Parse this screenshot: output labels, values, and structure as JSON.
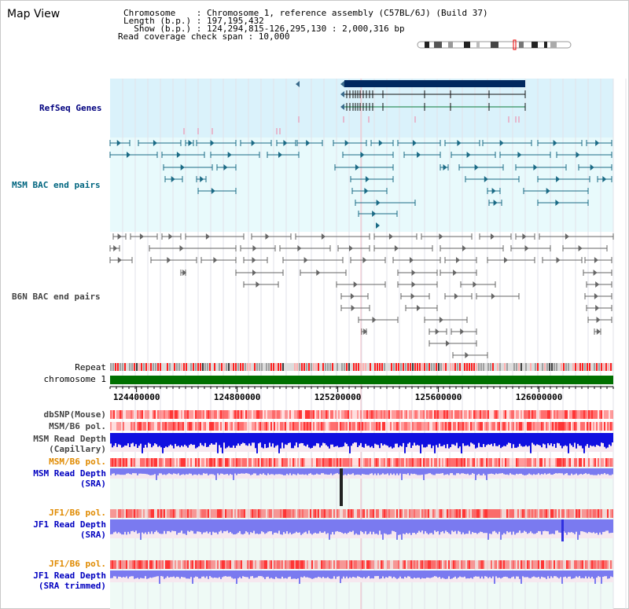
{
  "title": "Map View",
  "info": {
    "line1": "Chromosome    : Chromosome 1, reference assembly (C57BL/6J) (Build 37)",
    "line2": "Length (b.p.) : 197,195,432",
    "line3": "  Show (b.p.) : 124,294,815-126,295,130 : 2,000,316 bp",
    "line4": "Read coverage check span : 10,000"
  },
  "labels": {
    "refseq": "RefSeq Genes",
    "msm_bac": "MSM BAC end pairs",
    "b6n_bac": "B6N BAC end pairs",
    "repeat": "Repeat",
    "chromosome": "chromosome 1",
    "dbsnp": "dbSNP(Mouse)",
    "msm_b6_pol1": "MSM/B6 pol.",
    "msm_rd_cap_1": "MSM Read Depth",
    "msm_rd_cap_2": "(Capillary)",
    "msm_b6_pol2": "MSM/B6 pol.",
    "msm_rd_sra_1": "MSM Read Depth",
    "msm_rd_sra_2": "(SRA)",
    "jf1_b6_pol1": "JF1/B6 pol.",
    "jf1_rd_sra_1": "JF1 Read Depth",
    "jf1_rd_sra_2": "(SRA)",
    "jf1_b6_pol2": "JF1/B6 pol.",
    "jf1_rd_trim_1": "JF1 Read Depth",
    "jf1_rd_trim_2": "(SRA trimmed)"
  },
  "axis": {
    "start": 124294815,
    "end": 126295130,
    "ticks": [
      "124400000",
      "124800000",
      "125200000",
      "125600000",
      "126000000"
    ],
    "tick_values": [
      124400000,
      124800000,
      125200000,
      125600000,
      126000000
    ]
  },
  "colors": {
    "refseq_bg": "#daf2fb",
    "track_bg": "#e8fafc",
    "gene": "#00285f",
    "msm_feature": "#1a6a85",
    "b6n_feature": "#666666",
    "chromosome": "#007000",
    "snp": "#ff2020",
    "depth": "#1010e0",
    "depth_light": "#7a7af0"
  }
}
